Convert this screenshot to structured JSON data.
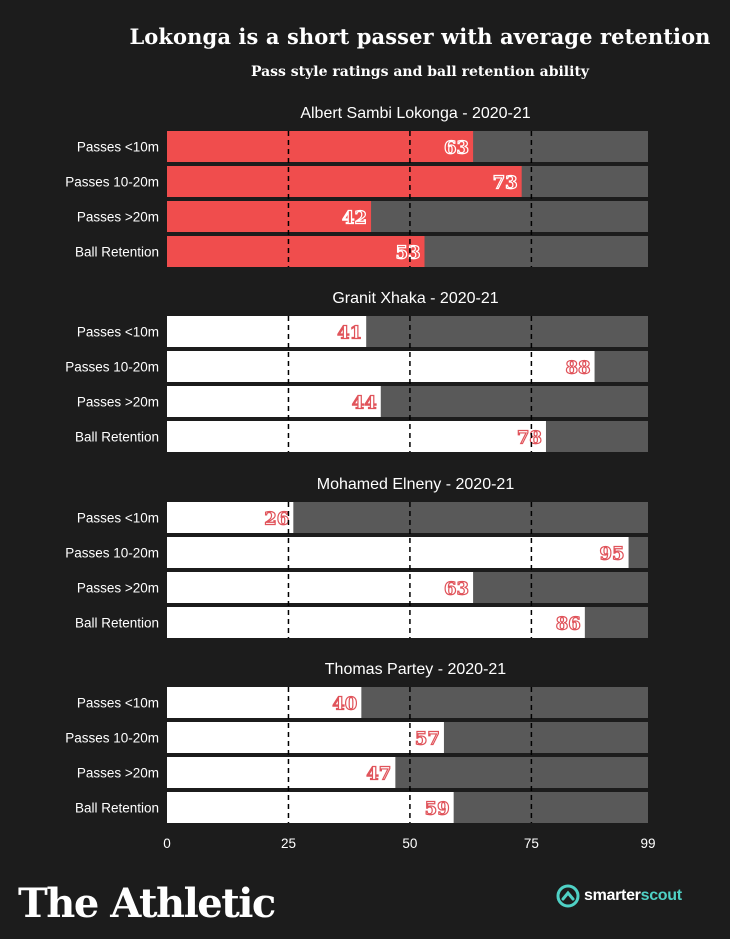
{
  "title": "Lokonga is a short passer with average retention",
  "subtitle": "Pass style ratings and ball retention ability",
  "brand": "The Athletic",
  "partner": {
    "prefix": "smarter",
    "suffix": "scout",
    "icon": "smarterscout-logo-icon"
  },
  "colors": {
    "background": "#1c1c1c",
    "highlight": "#f04d4d",
    "bar": "#ffffff",
    "track": "#595959",
    "label": "#e0535a"
  },
  "chart_data": {
    "type": "bar",
    "orientation": "horizontal",
    "categories": [
      "Passes <10m",
      "Passes 10-20m",
      "Passes >20m",
      "Ball Retention"
    ],
    "xlim": [
      0,
      99
    ],
    "xticks": [
      0,
      25,
      50,
      75,
      99
    ],
    "panels": [
      {
        "title": "Albert Sambi Lokonga - 2020-21",
        "values": [
          63,
          73,
          42,
          53
        ],
        "highlight": true
      },
      {
        "title": "Granit Xhaka - 2020-21",
        "values": [
          41,
          88,
          44,
          78
        ],
        "highlight": false
      },
      {
        "title": "Mohamed Elneny - 2020-21",
        "values": [
          26,
          95,
          63,
          86
        ],
        "highlight": false
      },
      {
        "title": "Thomas Partey - 2020-21",
        "values": [
          40,
          57,
          47,
          59
        ],
        "highlight": false
      }
    ]
  }
}
